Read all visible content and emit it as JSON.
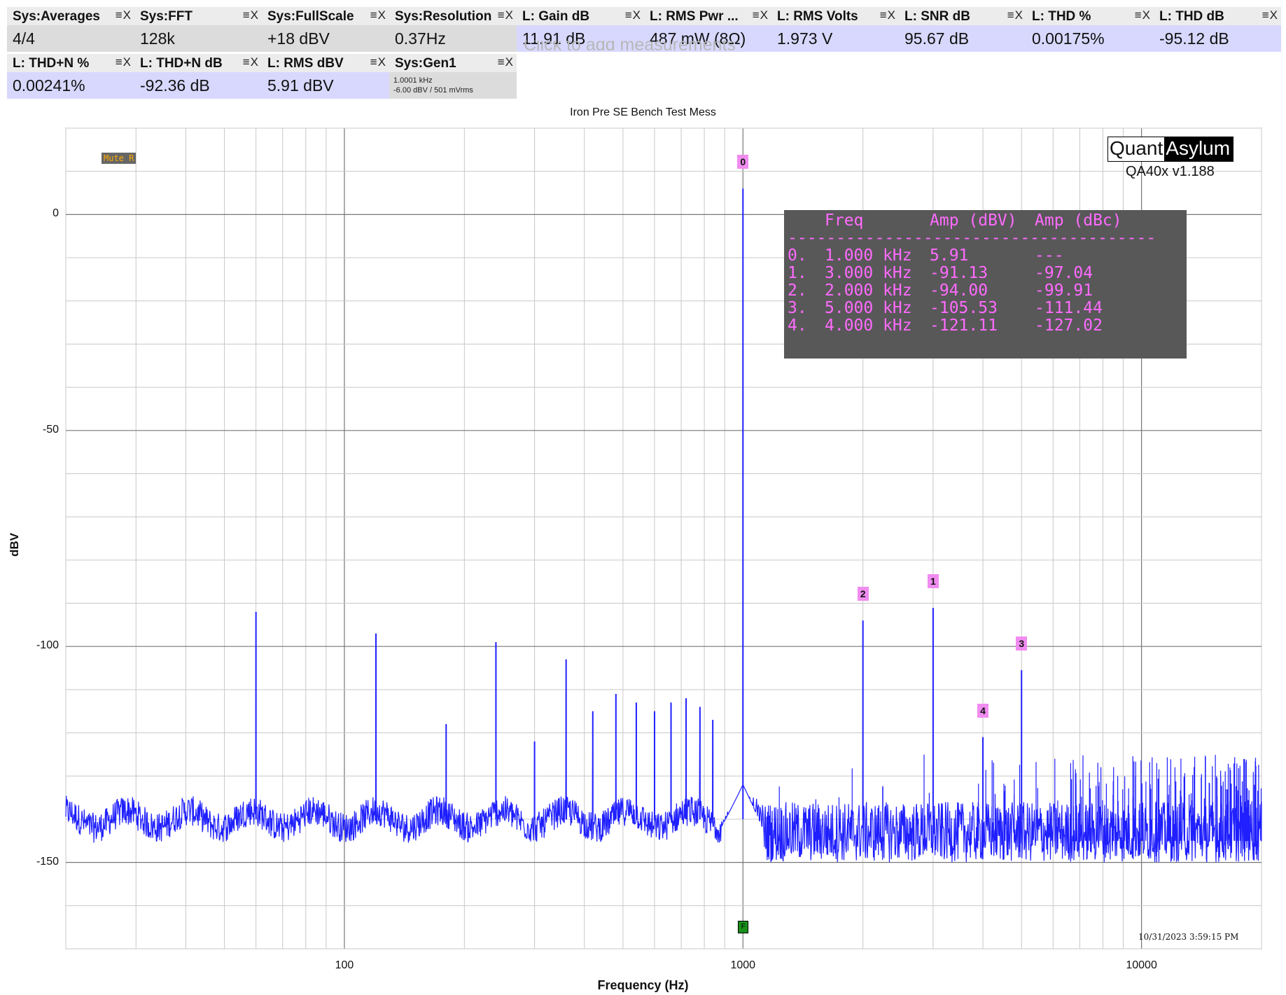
{
  "tiles": [
    {
      "label": "Sys:Averages",
      "value": "4/4",
      "kind": "sys"
    },
    {
      "label": "Sys:FFT",
      "value": "128k",
      "kind": "sys"
    },
    {
      "label": "Sys:FullScale",
      "value": "+18 dBV",
      "kind": "sys"
    },
    {
      "label": "Sys:Resolution",
      "value": "0.37Hz",
      "kind": "sys"
    },
    {
      "label": "L: Gain dB",
      "value": "11.91 dB",
      "kind": "meas"
    },
    {
      "label": "L: RMS Pwr ...",
      "value": "487 mW (8Ω)",
      "kind": "meas"
    },
    {
      "label": "L: RMS Volts",
      "value": "1.973 V",
      "kind": "meas"
    },
    {
      "label": "L: SNR dB",
      "value": "95.67 dB",
      "kind": "meas"
    },
    {
      "label": "L: THD %",
      "value": "0.00175%",
      "kind": "meas"
    },
    {
      "label": "L: THD dB",
      "value": "-95.12 dB",
      "kind": "meas"
    },
    {
      "label": "L: THD+N %",
      "value": "0.00241%",
      "kind": "meas"
    },
    {
      "label": "L: THD+N dB",
      "value": "-92.36 dB",
      "kind": "meas"
    },
    {
      "label": "L: RMS dBV",
      "value": "5.91 dBV",
      "kind": "meas"
    },
    {
      "label": "Sys:Gen1",
      "value": "",
      "kind": "sys",
      "lines": [
        "1.0001 kHz",
        "-6.00 dBV  / 501 mVrms"
      ]
    }
  ],
  "tile_controls": "≡X",
  "add_hint": "Click to add measurements",
  "plot": {
    "title": "Iron Pre SE Bench Test Mess",
    "xlabel": "Frequency (Hz)",
    "ylabel": "dBV",
    "mute_label": "Mute R",
    "logo_left": "Quant",
    "logo_right": "Asylum",
    "version": "QA40x v1.188",
    "timestamp": "10/31/2023 3:59:15 PM",
    "fund_marker": "F",
    "trace_color": "#1f1fff"
  },
  "harmonic_table": {
    "headers": [
      "Freq",
      "Amp (dBV)",
      "Amp (dBc)"
    ],
    "separator": "--------------------------------------",
    "rows": [
      {
        "idx": "0.",
        "freq": "1.000 kHz",
        "dbv": "5.91",
        "dbc": "---"
      },
      {
        "idx": "1.",
        "freq": "3.000 kHz",
        "dbv": "-91.13",
        "dbc": "-97.04"
      },
      {
        "idx": "2.",
        "freq": "2.000 kHz",
        "dbv": "-94.00",
        "dbc": "-99.91"
      },
      {
        "idx": "3.",
        "freq": "5.000 kHz",
        "dbv": "-105.53",
        "dbc": "-111.44"
      },
      {
        "idx": "4.",
        "freq": "4.000 kHz",
        "dbv": "-121.11",
        "dbc": "-127.02"
      }
    ]
  },
  "chart_data": {
    "type": "line",
    "title": "Iron Pre SE Bench Test Mess",
    "xlabel": "Frequency (Hz)",
    "ylabel": "dBV",
    "x_scale": "log",
    "xlim": [
      20,
      20000
    ],
    "ylim": [
      -170,
      20
    ],
    "x_ticks": [
      100,
      1000,
      10000
    ],
    "x_tick_labels": [
      "100",
      "1000",
      "10000"
    ],
    "y_ticks": [
      0,
      -50,
      -100,
      -150
    ],
    "y_tick_labels": [
      "0",
      "-50",
      "-100",
      "-150"
    ],
    "grid": true,
    "noise_floor_db": -143,
    "series": [
      {
        "peaks_hz": [
          60,
          120,
          180,
          240,
          300,
          360,
          420,
          480,
          540,
          600,
          660,
          720,
          780,
          840,
          1000,
          2000,
          3000,
          4000,
          5000
        ],
        "peaks_db": [
          -92,
          -97,
          -118,
          -99,
          -122,
          -103,
          -115,
          -111,
          -113,
          -115,
          -113,
          -112,
          -114,
          -117,
          6,
          -94,
          -91.1,
          -121,
          -105.5
        ]
      }
    ],
    "markers": [
      {
        "label": "0",
        "hz": 1000,
        "db": 6
      },
      {
        "label": "1",
        "hz": 3000,
        "db": -91.1
      },
      {
        "label": "2",
        "hz": 2000,
        "db": -94
      },
      {
        "label": "3",
        "hz": 5000,
        "db": -105.5
      },
      {
        "label": "4",
        "hz": 4000,
        "db": -121.1
      }
    ]
  }
}
